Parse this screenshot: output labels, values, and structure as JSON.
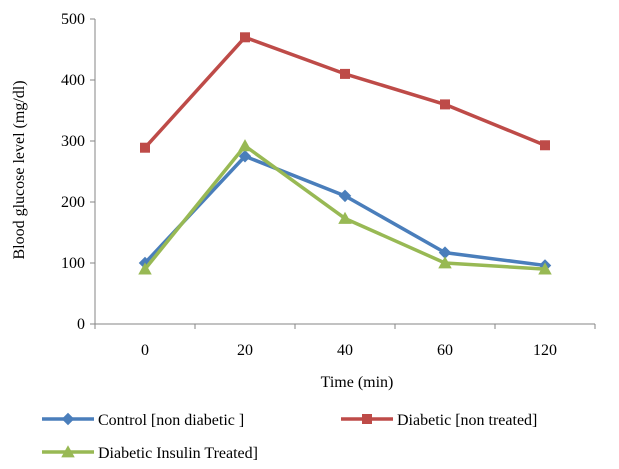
{
  "chart_data": {
    "type": "line",
    "title": "",
    "xlabel": "Time (min)",
    "ylabel": "Blood glucose level (mg/dl)",
    "categories": [
      "0",
      "20",
      "40",
      "60",
      "120"
    ],
    "ylim": [
      0,
      500
    ],
    "yticks": [
      0,
      100,
      200,
      300,
      400,
      500
    ],
    "grid": false,
    "legend_position": "bottom",
    "series": [
      {
        "name": "Control [non diabetic ]",
        "values": [
          100,
          275,
          210,
          117,
          96
        ],
        "color": "#4a7ebb",
        "marker": "diamond"
      },
      {
        "name": "Diabetic [non treated]",
        "values": [
          289,
          470,
          410,
          360,
          293
        ],
        "color": "#be4b48",
        "marker": "square"
      },
      {
        "name": "Diabetic Insulin Treated]",
        "values": [
          90,
          292,
          173,
          100,
          90
        ],
        "color": "#98b954",
        "marker": "triangle"
      }
    ]
  }
}
